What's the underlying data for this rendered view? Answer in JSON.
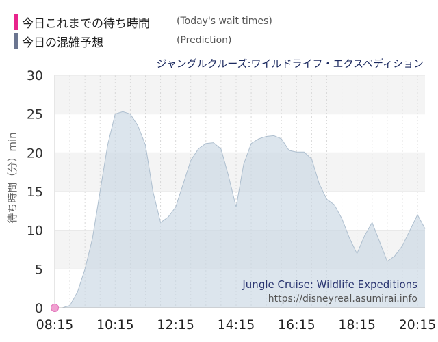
{
  "legend": {
    "today_label_ja": "今日これまでの待ち時間",
    "today_label_en": "(Today's wait times)",
    "today_color": "#e8248c",
    "prediction_label_ja": "今日の混雑予想",
    "prediction_label_en": "(Prediction)",
    "prediction_color": "#6b7590"
  },
  "attraction_name_ja": "ジャングルクルーズ:ワイルドライフ・エクスペディション",
  "watermark": {
    "name_en": "Jungle Cruise: Wildlife Expeditions",
    "url": "https://disneyreal.asumirai.info"
  },
  "chart_data": {
    "type": "area",
    "title": "ジャングルクルーズ:ワイルドライフ・エクスペディション",
    "ylabel": "待ち時間（分）min",
    "xlabel": "",
    "ylim": [
      0,
      30
    ],
    "xlim": [
      "08:15",
      "20:30"
    ],
    "y_ticks": [
      0,
      5,
      10,
      15,
      20,
      25,
      30
    ],
    "x_ticks": [
      "08:15",
      "10:15",
      "12:15",
      "14:15",
      "16:15",
      "18:15",
      "20:15"
    ],
    "grid": true,
    "series": [
      {
        "name": "今日の混雑予想",
        "type": "area",
        "color": "#c9d7e4",
        "x": [
          "08:15",
          "08:30",
          "08:45",
          "09:00",
          "09:15",
          "09:30",
          "09:45",
          "10:00",
          "10:15",
          "10:30",
          "10:45",
          "11:00",
          "11:15",
          "11:30",
          "11:45",
          "12:00",
          "12:15",
          "12:30",
          "12:45",
          "13:00",
          "13:15",
          "13:30",
          "13:45",
          "14:00",
          "14:15",
          "14:30",
          "14:45",
          "15:00",
          "15:15",
          "15:30",
          "15:45",
          "16:00",
          "16:15",
          "16:30",
          "16:45",
          "17:00",
          "17:15",
          "17:30",
          "17:45",
          "18:00",
          "18:15",
          "18:30",
          "18:45",
          "19:00",
          "19:15",
          "19:30",
          "19:45",
          "20:00",
          "20:15",
          "20:30"
        ],
        "values": [
          0,
          0,
          0.3,
          2,
          5,
          9,
          15,
          21,
          25,
          25.3,
          25,
          23.5,
          21,
          15,
          11,
          11.7,
          13,
          16,
          19,
          20.5,
          21.2,
          21.3,
          20.5,
          17,
          13,
          18.5,
          21.2,
          21.8,
          22.1,
          22.2,
          21.8,
          20.3,
          20.1,
          20.1,
          19.2,
          16,
          14,
          13.3,
          11.5,
          9,
          7,
          9.3,
          11,
          8.5,
          6,
          6.7,
          8,
          10,
          12,
          10.2
        ]
      },
      {
        "name": "今日これまでの待ち時間",
        "type": "scatter",
        "color": "#e8248c",
        "x": [
          "08:15"
        ],
        "values": [
          0
        ]
      }
    ]
  }
}
